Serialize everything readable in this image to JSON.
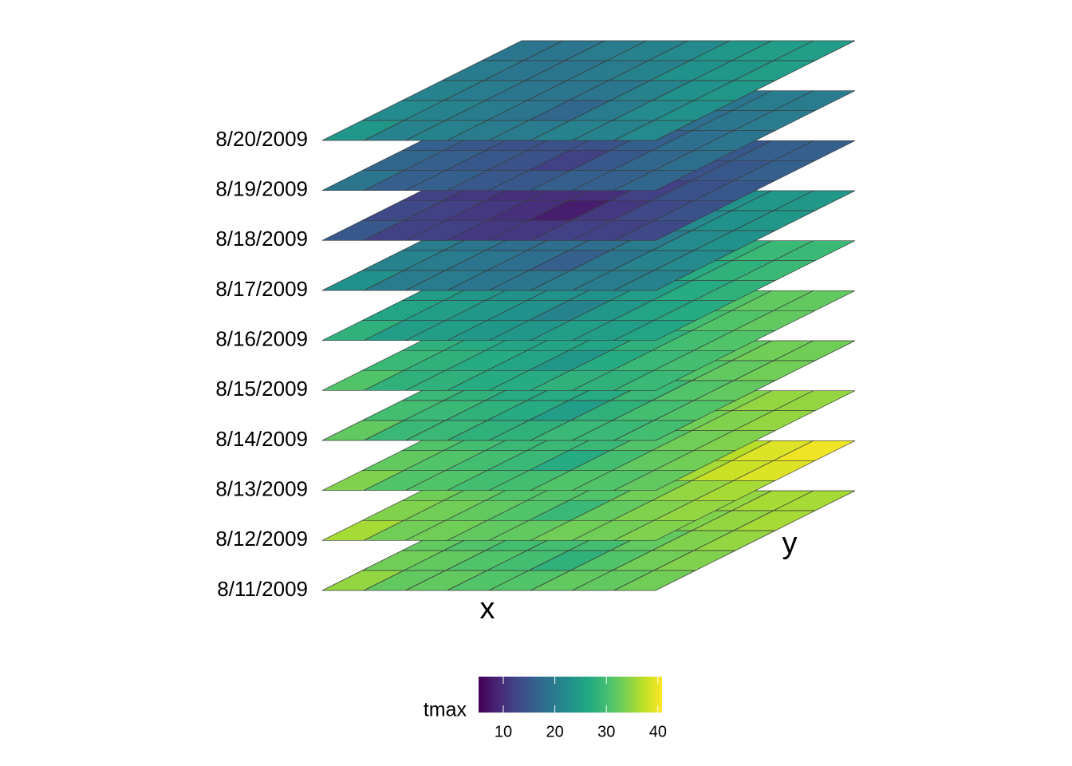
{
  "chart_data": {
    "type": "stacked-raster",
    "x_label": "x",
    "y_label": "y",
    "legend_title": "tmax",
    "colormap": "viridis",
    "color_lim": [
      5.2,
      40.8
    ],
    "color_ticks": [
      10,
      20,
      30,
      40
    ],
    "layers": [
      {
        "name": "8/11/2009",
        "values": [
          [
            35,
            32,
            32,
            31,
            31,
            32,
            32,
            33
          ],
          [
            33,
            32,
            31,
            30,
            28,
            31,
            33,
            34
          ],
          [
            32,
            31,
            30,
            30,
            30,
            32,
            34,
            35
          ],
          [
            31,
            30,
            30,
            31,
            32,
            34,
            35,
            36
          ],
          [
            30,
            30,
            31,
            32,
            33,
            35,
            36,
            36
          ]
        ]
      },
      {
        "name": "8/12/2009",
        "values": [
          [
            36,
            33,
            33,
            32,
            32,
            33,
            33,
            34
          ],
          [
            34,
            33,
            32,
            31,
            29,
            32,
            34,
            35
          ],
          [
            33,
            32,
            31,
            31,
            31,
            33,
            35,
            36
          ],
          [
            32,
            31,
            31,
            32,
            33,
            36,
            38,
            39
          ],
          [
            31,
            31,
            32,
            33,
            35,
            37,
            39,
            40
          ]
        ]
      },
      {
        "name": "8/13/2009",
        "values": [
          [
            34,
            31,
            31,
            30,
            30,
            31,
            31,
            32
          ],
          [
            32,
            31,
            30,
            29,
            27,
            30,
            32,
            33
          ],
          [
            31,
            30,
            29,
            29,
            29,
            31,
            33,
            34
          ],
          [
            30,
            29,
            29,
            30,
            31,
            33,
            34,
            35
          ],
          [
            29,
            29,
            30,
            31,
            32,
            34,
            35,
            35
          ]
        ]
      },
      {
        "name": "8/14/2009",
        "values": [
          [
            32,
            29,
            29,
            28,
            28,
            29,
            29,
            30
          ],
          [
            30,
            29,
            28,
            27,
            25,
            28,
            30,
            31
          ],
          [
            29,
            28,
            27,
            27,
            27,
            29,
            31,
            32
          ],
          [
            28,
            27,
            27,
            28,
            29,
            31,
            32,
            33
          ],
          [
            27,
            27,
            28,
            29,
            30,
            32,
            33,
            33
          ]
        ]
      },
      {
        "name": "8/15/2009",
        "values": [
          [
            31,
            28,
            28,
            27,
            27,
            28,
            28,
            29
          ],
          [
            29,
            28,
            27,
            26,
            24,
            27,
            29,
            30
          ],
          [
            28,
            27,
            26,
            26,
            26,
            28,
            30,
            31
          ],
          [
            27,
            26,
            26,
            27,
            28,
            30,
            31,
            32
          ],
          [
            26,
            26,
            27,
            28,
            29,
            31,
            32,
            32
          ]
        ]
      },
      {
        "name": "8/16/2009",
        "values": [
          [
            28,
            25,
            25,
            24,
            24,
            25,
            25,
            26
          ],
          [
            26,
            25,
            24,
            23,
            21,
            24,
            26,
            27
          ],
          [
            25,
            24,
            23,
            23,
            23,
            25,
            27,
            28
          ],
          [
            24,
            23,
            23,
            24,
            25,
            27,
            28,
            29
          ],
          [
            23,
            23,
            24,
            25,
            26,
            28,
            29,
            29
          ]
        ]
      },
      {
        "name": "8/17/2009",
        "values": [
          [
            23,
            20,
            20,
            19,
            19,
            20,
            20,
            21
          ],
          [
            21,
            20,
            19,
            18,
            16,
            19,
            21,
            22
          ],
          [
            20,
            19,
            18,
            18,
            18,
            20,
            22,
            23
          ],
          [
            19,
            18,
            18,
            19,
            20,
            22,
            23,
            24
          ],
          [
            18,
            18,
            19,
            20,
            21,
            23,
            24,
            24
          ]
        ]
      },
      {
        "name": "8/18/2009",
        "values": [
          [
            15,
            12,
            12,
            11,
            11,
            12,
            12,
            13
          ],
          [
            13,
            12,
            11,
            10,
            8,
            11,
            13,
            14
          ],
          [
            12,
            11,
            10,
            10,
            10,
            12,
            14,
            15
          ],
          [
            11,
            10,
            10,
            11,
            12,
            14,
            15,
            16
          ],
          [
            10,
            10,
            11,
            12,
            13,
            15,
            16,
            16
          ]
        ]
      },
      {
        "name": "8/19/2009",
        "values": [
          [
            19,
            16,
            16,
            15,
            15,
            16,
            16,
            17
          ],
          [
            17,
            16,
            15,
            14,
            12,
            15,
            17,
            18
          ],
          [
            16,
            15,
            14,
            14,
            14,
            16,
            18,
            19
          ],
          [
            15,
            14,
            14,
            15,
            16,
            18,
            19,
            20
          ],
          [
            14,
            14,
            15,
            16,
            17,
            19,
            20,
            20
          ]
        ]
      },
      {
        "name": "8/20/2009",
        "values": [
          [
            24,
            21,
            21,
            20,
            20,
            21,
            21,
            22
          ],
          [
            22,
            21,
            20,
            19,
            17,
            20,
            22,
            23
          ],
          [
            21,
            20,
            19,
            19,
            19,
            21,
            23,
            24
          ],
          [
            20,
            19,
            19,
            20,
            21,
            23,
            24,
            25
          ],
          [
            19,
            19,
            20,
            21,
            22,
            24,
            25,
            25
          ]
        ]
      }
    ]
  }
}
